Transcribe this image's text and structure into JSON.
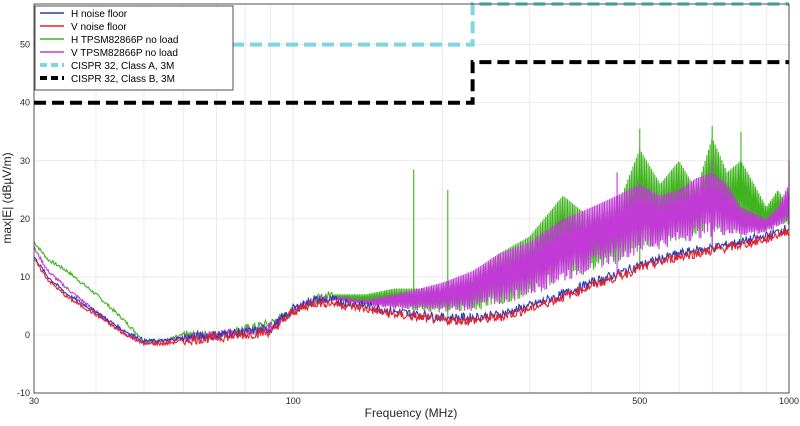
{
  "chart_data": {
    "type": "line",
    "title": "",
    "xlabel": "Frequency (MHz)",
    "ylabel": "max|E| (dBµV/m)",
    "xscale": "log",
    "xlim": [
      30,
      1000
    ],
    "ylim": [
      -10,
      57
    ],
    "grid": true,
    "legend_position": "top-left",
    "x_ticks": [
      {
        "value": 30,
        "label": "30"
      },
      {
        "value": 100,
        "label": "100"
      },
      {
        "value": 500,
        "label": "500"
      },
      {
        "value": 1000,
        "label": "1000"
      }
    ],
    "y_ticks": [
      {
        "value": -10,
        "label": "-10"
      },
      {
        "value": 0,
        "label": "0"
      },
      {
        "value": 10,
        "label": "10"
      },
      {
        "value": 20,
        "label": "20"
      },
      {
        "value": 30,
        "label": "30"
      },
      {
        "value": 40,
        "label": "40"
      },
      {
        "value": 50,
        "label": "50"
      }
    ],
    "series": [
      {
        "name": "H noise floor",
        "color": "#2e3bb0",
        "style": "solid",
        "x": [
          30,
          32,
          35,
          40,
          45,
          50,
          55,
          60,
          70,
          80,
          90,
          100,
          110,
          120,
          140,
          160,
          180,
          200,
          230,
          260,
          300,
          350,
          400,
          450,
          500,
          600,
          700,
          800,
          900,
          1000
        ],
        "y": [
          13.5,
          10,
          7,
          4,
          1,
          -1,
          -1,
          -0.5,
          0,
          0.5,
          1,
          4.5,
          6,
          6,
          5,
          4,
          3.5,
          3,
          3,
          3.5,
          5,
          7,
          9,
          10.5,
          12,
          14,
          15,
          16,
          17,
          18.5
        ]
      },
      {
        "name": "V noise floor",
        "color": "#e8202a",
        "style": "solid",
        "x": [
          30,
          32,
          35,
          40,
          45,
          50,
          55,
          60,
          70,
          80,
          90,
          100,
          110,
          120,
          140,
          160,
          180,
          200,
          230,
          260,
          300,
          350,
          400,
          450,
          500,
          600,
          700,
          800,
          900,
          1000
        ],
        "y": [
          13,
          9.5,
          6.5,
          3.5,
          0.5,
          -1.5,
          -1.5,
          -1,
          -0.5,
          0,
          0.5,
          4,
          5.5,
          5.5,
          4.5,
          3.5,
          3,
          2.5,
          2.5,
          3,
          4.5,
          6.5,
          8.5,
          10,
          11.5,
          13.5,
          14.5,
          15.5,
          16.5,
          18
        ]
      },
      {
        "name": "H TPSM82866P no load",
        "color": "#3fb41f",
        "style": "solid",
        "x": [
          30,
          32,
          35,
          40,
          45,
          50,
          55,
          60,
          70,
          80,
          90,
          100,
          110,
          120,
          140,
          160,
          180,
          200,
          230,
          260,
          300,
          350,
          400,
          450,
          500,
          550,
          600,
          650,
          700,
          750,
          800,
          850,
          900,
          950,
          1000
        ],
        "y": [
          16,
          13,
          11,
          7,
          3,
          -1,
          -1,
          0,
          0,
          1,
          2,
          4,
          6,
          7,
          7,
          8,
          8,
          8,
          10,
          14,
          17,
          24,
          20,
          22,
          32,
          26,
          30,
          25,
          34,
          28,
          30,
          26,
          22,
          25,
          22
        ],
        "peaks": [
          {
            "x": 175,
            "y": 28.5
          },
          {
            "x": 205,
            "y": 25
          },
          {
            "x": 500,
            "y": 35.5
          },
          {
            "x": 700,
            "y": 36
          },
          {
            "x": 800,
            "y": 35
          }
        ]
      },
      {
        "name": "V TPSM82866P no load",
        "color": "#c23ad6",
        "style": "solid",
        "x": [
          30,
          32,
          35,
          40,
          45,
          50,
          55,
          60,
          70,
          80,
          90,
          100,
          110,
          120,
          140,
          160,
          180,
          200,
          230,
          260,
          300,
          350,
          400,
          450,
          500,
          550,
          600,
          650,
          700,
          750,
          800,
          850,
          900,
          950,
          1000
        ],
        "y": [
          15,
          11,
          8,
          4,
          0.5,
          -1.5,
          -1,
          -0.5,
          0,
          0.5,
          1.5,
          4,
          6,
          6.5,
          6,
          7,
          8,
          9,
          11,
          14,
          16,
          20,
          22,
          24,
          26,
          24,
          25,
          27,
          28,
          26,
          22,
          21,
          20,
          22,
          26
        ],
        "peaks": [
          {
            "x": 450,
            "y": 28
          },
          {
            "x": 700,
            "y": 30
          },
          {
            "x": 1000,
            "y": 30
          }
        ]
      },
      {
        "name": "CISPR 32, Class A, 3M",
        "color": "#7fd6de",
        "style": "dashed",
        "x": [
          30,
          230,
          230,
          1000
        ],
        "y": [
          50,
          50,
          57,
          57
        ]
      },
      {
        "name": "CISPR 32, Class B, 3M",
        "color": "#000000",
        "style": "dashed",
        "x": [
          30,
          230,
          230,
          1000
        ],
        "y": [
          40,
          40,
          47,
          47
        ]
      }
    ]
  }
}
